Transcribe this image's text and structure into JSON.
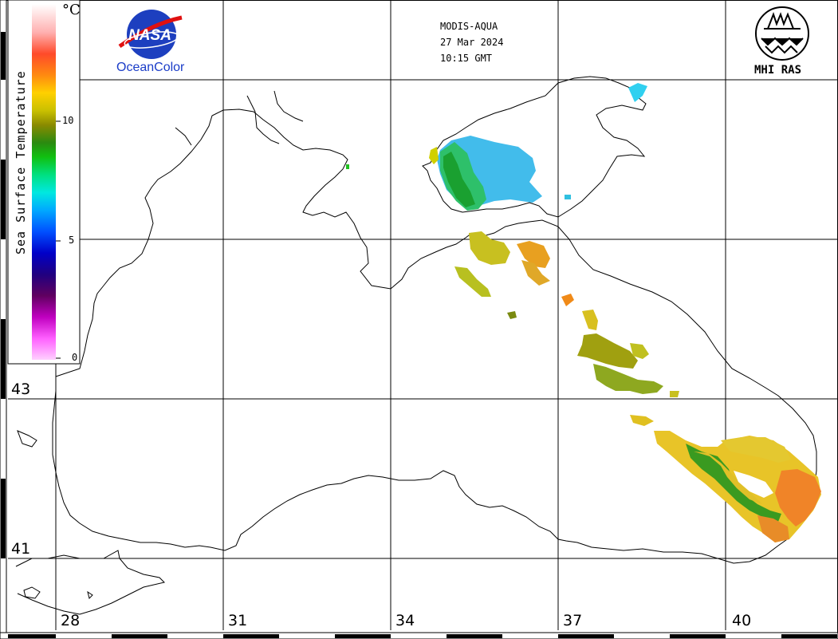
{
  "header": {
    "sensor": "MODIS-AQUA",
    "date": "27 Mar 2024",
    "time": "10:15 GMT"
  },
  "logos": {
    "nasa_wordmark": "NASA",
    "oceancolor": "OceanColor",
    "mhi": "MHI RAS"
  },
  "colorbar": {
    "title": "Sea Surface Temperature",
    "unit": "°C",
    "ticks": [
      "10",
      "5",
      "0"
    ]
  },
  "latitude_labels": [
    "43",
    "41"
  ],
  "longitude_labels": [
    "28",
    "31",
    "34",
    "37",
    "40"
  ]
}
